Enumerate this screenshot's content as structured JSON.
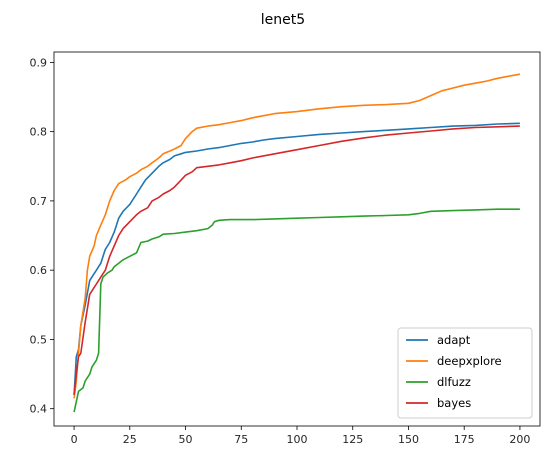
{
  "chart_data": {
    "type": "line",
    "title": "lenet5",
    "xlabel": "",
    "ylabel": "",
    "xlim": [
      -9,
      209
    ],
    "ylim": [
      0.375,
      0.915
    ],
    "xticks": [
      0,
      25,
      50,
      75,
      100,
      125,
      150,
      175,
      200
    ],
    "yticks": [
      0.4,
      0.5,
      0.6,
      0.7,
      0.8,
      0.9
    ],
    "grid": false,
    "legend_position": "lower-right",
    "series": [
      {
        "name": "adapt",
        "color": "#1f77b4",
        "x": [
          0,
          1,
          2,
          3,
          5,
          7,
          8,
          10,
          12,
          14,
          16,
          18,
          20,
          22,
          25,
          28,
          30,
          32,
          35,
          38,
          40,
          43,
          45,
          48,
          50,
          55,
          60,
          65,
          70,
          75,
          80,
          85,
          90,
          100,
          110,
          120,
          130,
          140,
          150,
          160,
          170,
          180,
          190,
          200
        ],
        "y": [
          0.42,
          0.475,
          0.485,
          0.52,
          0.55,
          0.585,
          0.59,
          0.6,
          0.61,
          0.63,
          0.64,
          0.655,
          0.675,
          0.685,
          0.695,
          0.71,
          0.72,
          0.73,
          0.74,
          0.75,
          0.755,
          0.76,
          0.765,
          0.768,
          0.77,
          0.772,
          0.775,
          0.777,
          0.78,
          0.783,
          0.785,
          0.788,
          0.79,
          0.793,
          0.796,
          0.798,
          0.8,
          0.802,
          0.804,
          0.806,
          0.808,
          0.809,
          0.811,
          0.812
        ]
      },
      {
        "name": "deepxplore",
        "color": "#ff7f0e",
        "x": [
          0,
          1,
          2,
          3,
          5,
          6,
          7,
          9,
          10,
          12,
          14,
          16,
          18,
          20,
          23,
          25,
          28,
          30,
          33,
          35,
          38,
          40,
          43,
          45,
          48,
          50,
          53,
          55,
          60,
          65,
          70,
          75,
          80,
          85,
          90,
          100,
          110,
          120,
          130,
          140,
          150,
          155,
          160,
          165,
          170,
          175,
          180,
          185,
          190,
          195,
          200
        ],
        "y": [
          0.415,
          0.44,
          0.48,
          0.52,
          0.56,
          0.6,
          0.62,
          0.635,
          0.65,
          0.665,
          0.68,
          0.7,
          0.715,
          0.725,
          0.73,
          0.735,
          0.74,
          0.745,
          0.75,
          0.755,
          0.762,
          0.768,
          0.772,
          0.775,
          0.78,
          0.79,
          0.8,
          0.805,
          0.808,
          0.81,
          0.813,
          0.816,
          0.82,
          0.823,
          0.826,
          0.829,
          0.833,
          0.836,
          0.838,
          0.839,
          0.841,
          0.845,
          0.852,
          0.859,
          0.863,
          0.867,
          0.87,
          0.873,
          0.877,
          0.88,
          0.883
        ]
      },
      {
        "name": "dlfuzz",
        "color": "#2ca02c",
        "x": [
          0,
          1,
          2,
          4,
          5,
          7,
          8,
          10,
          11,
          12,
          13,
          15,
          17,
          18,
          20,
          22,
          25,
          28,
          30,
          33,
          35,
          38,
          40,
          45,
          50,
          55,
          60,
          62,
          63,
          65,
          70,
          80,
          90,
          100,
          110,
          120,
          130,
          140,
          150,
          155,
          160,
          170,
          180,
          190,
          200
        ],
        "y": [
          0.395,
          0.41,
          0.425,
          0.43,
          0.44,
          0.45,
          0.46,
          0.47,
          0.48,
          0.58,
          0.59,
          0.596,
          0.6,
          0.605,
          0.61,
          0.615,
          0.62,
          0.625,
          0.64,
          0.642,
          0.645,
          0.648,
          0.652,
          0.653,
          0.655,
          0.657,
          0.66,
          0.665,
          0.67,
          0.672,
          0.673,
          0.673,
          0.674,
          0.675,
          0.676,
          0.677,
          0.678,
          0.679,
          0.68,
          0.682,
          0.685,
          0.686,
          0.687,
          0.688,
          0.688
        ]
      },
      {
        "name": "bayes",
        "color": "#d62728",
        "x": [
          0,
          1,
          2,
          3,
          5,
          7,
          8,
          10,
          12,
          14,
          16,
          18,
          20,
          22,
          25,
          28,
          30,
          33,
          35,
          38,
          40,
          43,
          45,
          48,
          50,
          53,
          55,
          60,
          65,
          70,
          75,
          80,
          90,
          100,
          110,
          120,
          130,
          140,
          150,
          160,
          170,
          180,
          190,
          200
        ],
        "y": [
          0.42,
          0.45,
          0.475,
          0.48,
          0.525,
          0.565,
          0.57,
          0.58,
          0.59,
          0.6,
          0.62,
          0.635,
          0.65,
          0.66,
          0.67,
          0.68,
          0.685,
          0.69,
          0.7,
          0.705,
          0.71,
          0.715,
          0.72,
          0.73,
          0.737,
          0.742,
          0.748,
          0.75,
          0.752,
          0.755,
          0.758,
          0.762,
          0.768,
          0.774,
          0.78,
          0.786,
          0.791,
          0.795,
          0.798,
          0.801,
          0.804,
          0.806,
          0.807,
          0.808
        ]
      }
    ]
  }
}
